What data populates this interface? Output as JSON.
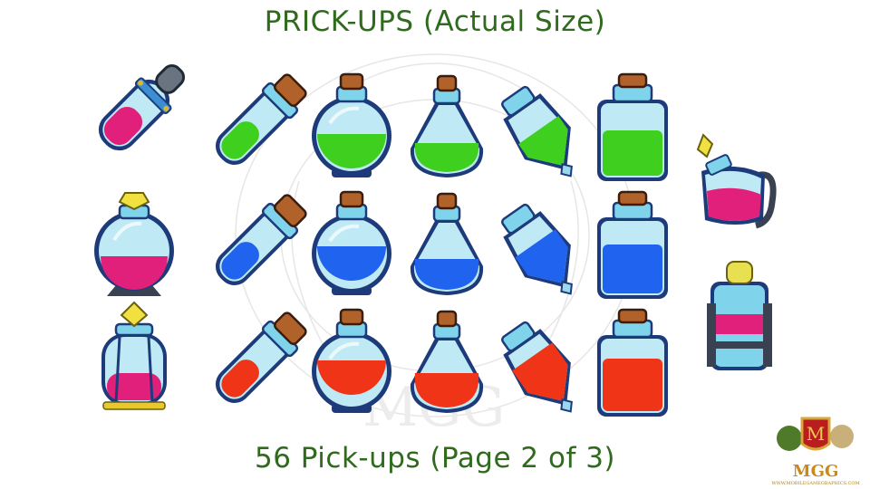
{
  "title_top": "PRICK-UPS (Actual Size)",
  "title_bottom": "56 Pick-ups (Page 2 of 3)",
  "logo": {
    "letters": "MGG",
    "url": "WWW.MOBILEGAMEGRAPHICS.COM",
    "emblem_letter": "M"
  },
  "liquid_colors": {
    "green": "#3fcf1f",
    "blue": "#1f63ef",
    "red": "#ef3418",
    "pink": "#e0207a"
  },
  "sprites": [
    {
      "name": "syringe-vial-pink",
      "liquid": "pink"
    },
    {
      "name": "round-jar-pink",
      "liquid": "pink"
    },
    {
      "name": "lantern-bottle-pink",
      "liquid": "pink"
    },
    {
      "name": "test-tube-green",
      "liquid": "green"
    },
    {
      "name": "test-tube-blue",
      "liquid": "blue"
    },
    {
      "name": "test-tube-red",
      "liquid": "red"
    },
    {
      "name": "round-flask-green",
      "liquid": "green"
    },
    {
      "name": "round-flask-blue",
      "liquid": "blue"
    },
    {
      "name": "round-flask-red",
      "liquid": "red"
    },
    {
      "name": "pear-flask-green",
      "liquid": "green"
    },
    {
      "name": "pear-flask-blue",
      "liquid": "blue"
    },
    {
      "name": "pear-flask-red",
      "liquid": "red"
    },
    {
      "name": "gem-bottle-green",
      "liquid": "green"
    },
    {
      "name": "gem-bottle-blue",
      "liquid": "blue"
    },
    {
      "name": "gem-bottle-red",
      "liquid": "red"
    },
    {
      "name": "square-jar-green",
      "liquid": "green"
    },
    {
      "name": "square-jar-blue",
      "liquid": "blue"
    },
    {
      "name": "square-jar-red",
      "liquid": "red"
    },
    {
      "name": "teapot-flask-pink",
      "liquid": "pink"
    },
    {
      "name": "framed-tube-pink",
      "liquid": "pink"
    }
  ]
}
